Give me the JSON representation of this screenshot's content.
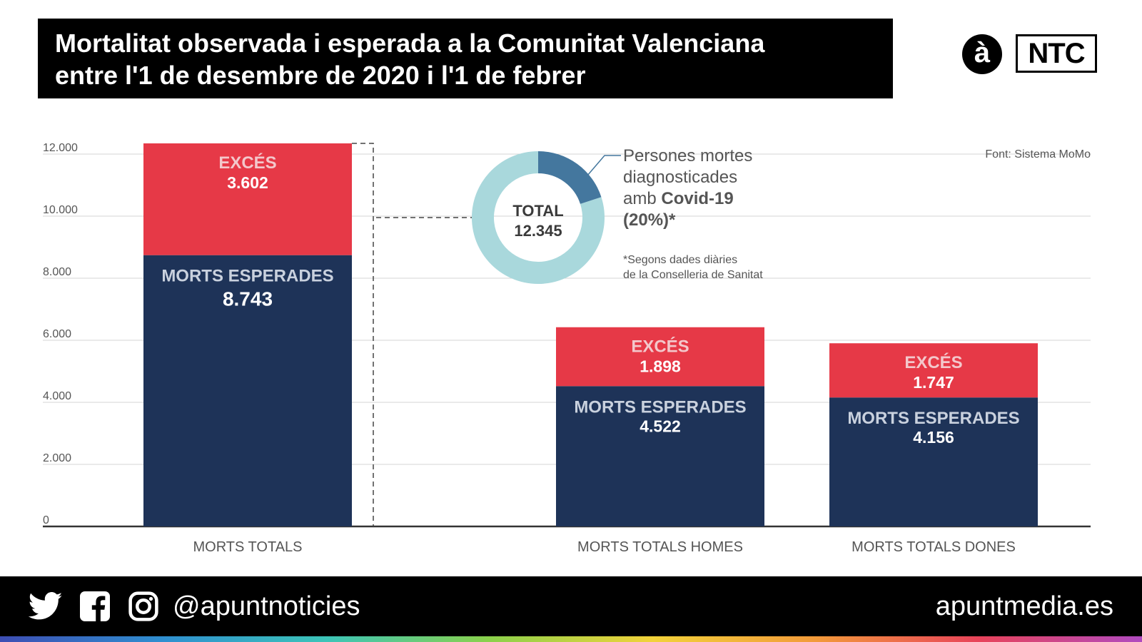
{
  "title": {
    "line1": "Mortalitat observada i esperada a la Comunitat Valenciana",
    "line2": "entre l'1 de desembre de 2020 i l'1 de febrer"
  },
  "logos": {
    "circle_letter": "à",
    "brand": "NTC"
  },
  "source": "Font: Sistema MoMo",
  "chart_data": {
    "type": "bar",
    "stacked": true,
    "categories": [
      "MORTS TOTALS",
      "MORTS TOTALS HOMES",
      "MORTS TOTALS DONES"
    ],
    "series": [
      {
        "name": "MORTS ESPERADES",
        "color": "#1e3358",
        "values": [
          8743,
          4522,
          4156
        ],
        "labels": [
          "8.743",
          "4.522",
          "4.156"
        ]
      },
      {
        "name": "EXCÉS",
        "color": "#e63947",
        "values": [
          3602,
          1898,
          1747
        ],
        "labels": [
          "3.602",
          "1.898",
          "1.747"
        ]
      }
    ],
    "y_ticks": [
      0,
      2000,
      4000,
      6000,
      8000,
      10000,
      12000
    ],
    "y_tick_labels": [
      "0",
      "2.000",
      "4.000",
      "6.000",
      "8.000",
      "10.000",
      "12.000"
    ],
    "ylim": [
      0,
      12345
    ],
    "grid": true,
    "donut": {
      "center_label": "TOTAL",
      "center_value": "12.345",
      "covid_fraction": 0.2,
      "colors": {
        "covid": "#44779e",
        "rest": "#a9d8dc"
      },
      "annotation_lines": [
        "Persones mortes",
        "diagnosticades"
      ],
      "annotation_prefix": "amb ",
      "annotation_bold": "Covid-19",
      "annotation_pct": "(20%)*",
      "footnote_lines": [
        "*Segons dades diàries",
        "de la Conselleria de Sanitat"
      ]
    }
  },
  "footer": {
    "handle": "@apuntnoticies",
    "site": "apuntmedia.es",
    "icons": [
      "twitter-icon",
      "facebook-icon",
      "instagram-icon"
    ]
  }
}
